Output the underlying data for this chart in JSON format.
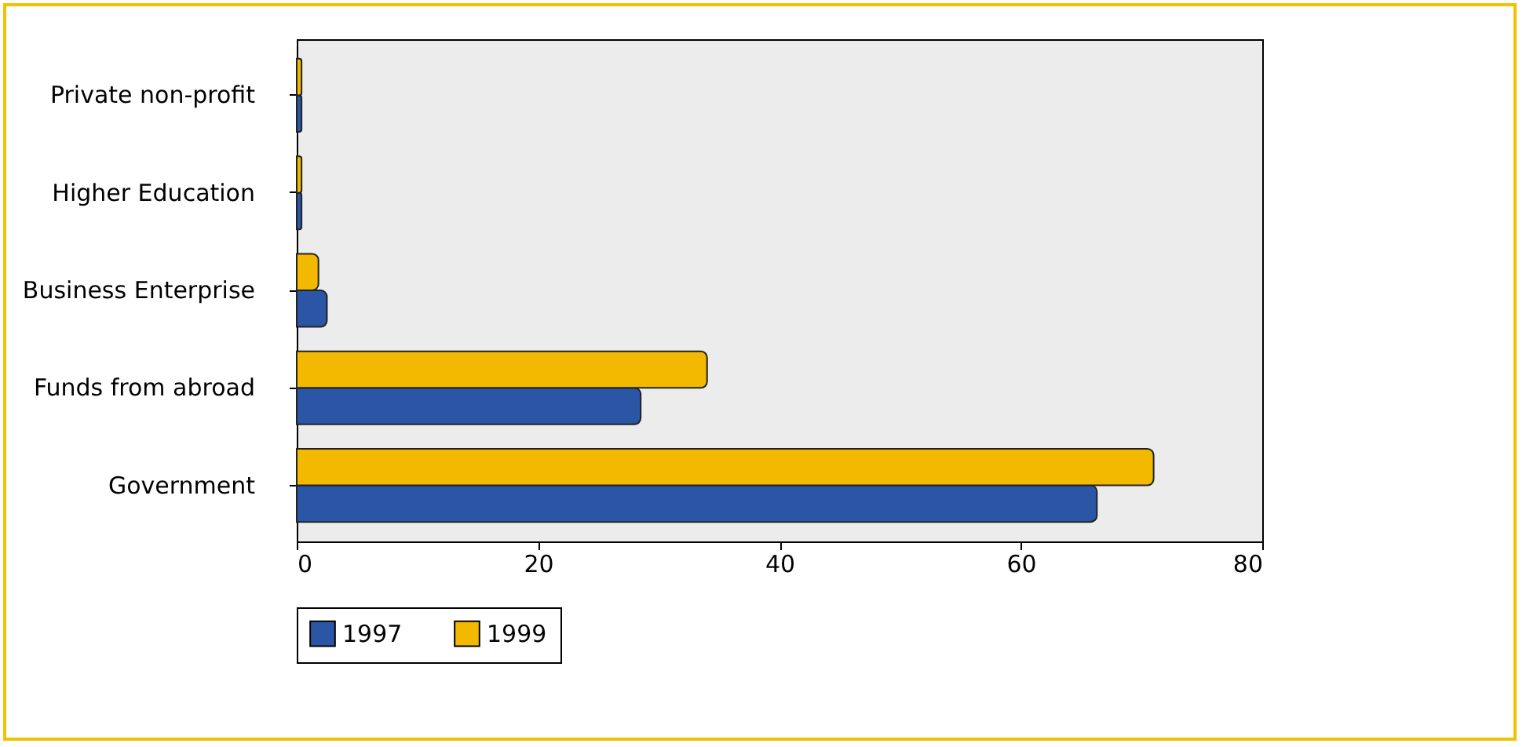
{
  "chart_data": {
    "type": "bar",
    "orientation": "horizontal",
    "categories": [
      "Private non-profit",
      "Higher Education",
      "Business Enterprise",
      "Funds from abroad",
      "Government"
    ],
    "series": [
      {
        "name": "1997",
        "color": "#2a56a5",
        "values": [
          0.4,
          0.4,
          2.5,
          28.5,
          66.3
        ]
      },
      {
        "name": "1999",
        "color": "#f2b900",
        "values": [
          0.4,
          0.4,
          1.8,
          34,
          71
        ]
      }
    ],
    "xlim": [
      0,
      80
    ],
    "xticks": [
      0,
      20,
      40,
      60,
      80
    ],
    "grid": false,
    "legend": "bottom"
  }
}
